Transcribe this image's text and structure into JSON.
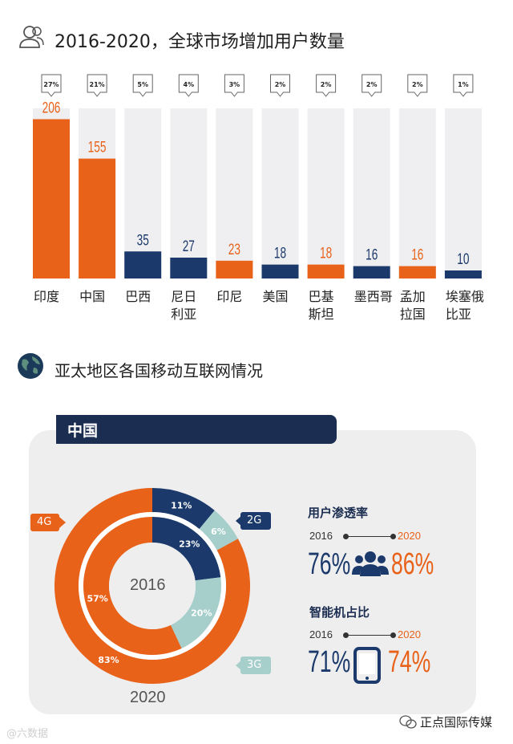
{
  "header1": {
    "title": "2016-2020，全球市场增加用户数量"
  },
  "header2": {
    "title": "亚太地区各国移动互联网情况"
  },
  "chart_data": [
    {
      "type": "bar",
      "title": "2016-2020，全球市场增加用户数量",
      "categories": [
        "印度",
        "中国",
        "巴西",
        "尼日利亚",
        "印尼",
        "美国",
        "巴基斯坦",
        "墨西哥",
        "孟加拉国",
        "埃塞俄比亚"
      ],
      "category_lines": [
        [
          "印度"
        ],
        [
          "中国"
        ],
        [
          "巴西"
        ],
        [
          "尼日",
          "利亚"
        ],
        [
          "印尼"
        ],
        [
          "美国"
        ],
        [
          "巴基",
          "斯坦"
        ],
        [
          "墨西哥"
        ],
        [
          "孟加",
          "拉国"
        ],
        [
          "埃塞俄",
          "比亚"
        ]
      ],
      "values": [
        206,
        155,
        35,
        27,
        23,
        18,
        18,
        16,
        16,
        10
      ],
      "shares": [
        "27%",
        "21%",
        "5%",
        "4%",
        "3%",
        "2%",
        "2%",
        "2%",
        "2%",
        "1%"
      ],
      "bar_colors": [
        "#e8621a",
        "#e8621a",
        "#1b3a6b",
        "#1b3a6b",
        "#e8621a",
        "#1b3a6b",
        "#e8621a",
        "#1b3a6b",
        "#e8621a",
        "#1b3a6b"
      ],
      "ylim": [
        0,
        220
      ]
    },
    {
      "type": "pie",
      "title": "中国",
      "inner_year": "2016",
      "outer_year": "2020",
      "series": [
        {
          "name": "2016",
          "labels": [
            "2G",
            "3G",
            "4G"
          ],
          "values": [
            23,
            20,
            57
          ],
          "label_text": [
            "23%",
            "20%",
            "57%"
          ]
        },
        {
          "name": "2020",
          "labels": [
            "2G",
            "3G",
            "4G"
          ],
          "values": [
            11,
            6,
            83
          ],
          "label_text": [
            "11%",
            "6%",
            "83%"
          ]
        }
      ],
      "legend": [
        "2G",
        "3G",
        "4G"
      ]
    }
  ],
  "china": {
    "banner": "中国",
    "center_year": "2016",
    "outer_year": "2020",
    "tag_2g": "2G",
    "tag_3g": "3G",
    "tag_4g": "4G"
  },
  "penetration": {
    "title": "用户渗透率",
    "year_start": "2016",
    "year_end": "2020",
    "value_start": "76%",
    "value_end": "86%"
  },
  "smartphone": {
    "title": "智能机占比",
    "year_start": "2016",
    "year_end": "2020",
    "value_start": "71%",
    "value_end": "74%"
  },
  "footer": {
    "watermark_left": "六数据",
    "watermark_right": "正点国际传媒"
  },
  "colors": {
    "orange": "#e8621a",
    "navy": "#1b3a6b",
    "teal": "#a6cfcb",
    "panel": "#eeeeef",
    "column_bg": "#efeff1"
  }
}
